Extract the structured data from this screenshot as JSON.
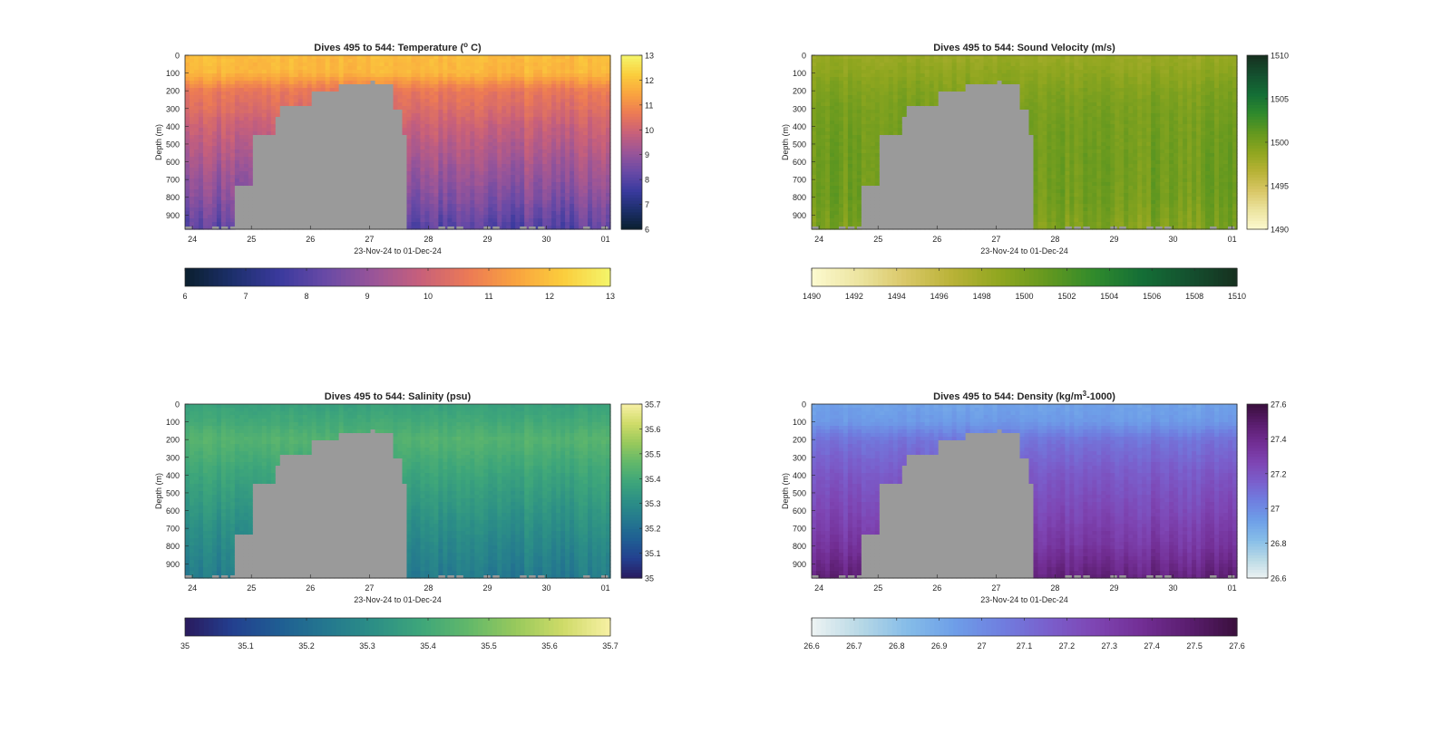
{
  "figure": {
    "background": "#ffffff",
    "mask_color": "#9a9a9a"
  },
  "chart_data": [
    {
      "type": "heatmap",
      "title_parts": [
        "Dives 495 to 544: Temperature (",
        "o",
        " C)"
      ],
      "xlabel": "23-Nov-24 to 01-Dec-24",
      "ylabel": "Depth (m)",
      "x_ticks": [
        "24",
        "25",
        "26",
        "27",
        "28",
        "29",
        "30",
        "01"
      ],
      "x_domain": [
        "2024-11-23T21:00",
        "2024-12-01T02:00"
      ],
      "y_ticks": [
        0,
        100,
        200,
        300,
        400,
        500,
        600,
        700,
        800,
        900
      ],
      "ylim": [
        0,
        980
      ],
      "y_reversed": true,
      "clim": [
        6,
        13
      ],
      "colorbar_right_ticks": [
        "6",
        "7",
        "8",
        "9",
        "10",
        "11",
        "12",
        "13"
      ],
      "colorbar_bottom_ticks": [
        "6",
        "7",
        "8",
        "9",
        "10",
        "11",
        "12",
        "13"
      ],
      "colormap": [
        "#0a1f2e",
        "#1c2f6b",
        "#3a3a9e",
        "#6a4aa6",
        "#9a5598",
        "#c8607a",
        "#ec7a55",
        "#f9a33f",
        "#fbcd3c",
        "#f4f56a"
      ],
      "profile": {
        "depths": [
          0,
          100,
          200,
          300,
          400,
          600,
          800,
          980
        ],
        "values": [
          11.9,
          11.8,
          10.6,
          10.3,
          9.9,
          9.3,
          8.7,
          8.0
        ]
      },
      "variability": 0.35,
      "gap": {
        "x": [
          "2024-11-24T16:00",
          "2024-11-24T17:00",
          "2024-11-25T00:00",
          "2024-11-25T09:00",
          "2024-11-25T12:00",
          "2024-11-26T00:00",
          "2024-11-26T12:00",
          "2024-11-27T00:00",
          "2024-11-27T03:00",
          "2024-11-27T09:00",
          "2024-11-27T14:00",
          "2024-11-27T16:00"
        ],
        "top_depth": [
          980,
          740,
          440,
          340,
          280,
          200,
          160,
          150,
          160,
          300,
          440,
          980
        ]
      }
    },
    {
      "type": "heatmap",
      "title_parts": [
        "Dives 495 to 544: Sound Velocity (m/s)",
        "",
        ""
      ],
      "xlabel": "23-Nov-24 to 01-Dec-24",
      "ylabel": "Depth (m)",
      "x_ticks": [
        "24",
        "25",
        "26",
        "27",
        "28",
        "29",
        "30",
        "01"
      ],
      "x_domain": [
        "2024-11-23T21:00",
        "2024-12-01T02:00"
      ],
      "y_ticks": [
        0,
        100,
        200,
        300,
        400,
        500,
        600,
        700,
        800,
        900
      ],
      "ylim": [
        0,
        980
      ],
      "y_reversed": true,
      "clim": [
        1490,
        1510
      ],
      "colorbar_right_ticks": [
        "1490",
        "1495",
        "1500",
        "1505",
        "1510"
      ],
      "colorbar_bottom_ticks": [
        "1490",
        "1492",
        "1494",
        "1496",
        "1498",
        "1500",
        "1502",
        "1504",
        "1506",
        "1508",
        "1510"
      ],
      "colormap": [
        "#fdfad0",
        "#ece4a0",
        "#d9c766",
        "#b8b236",
        "#8fa61f",
        "#63981f",
        "#2f8a2c",
        "#146e36",
        "#14502f",
        "#16301f"
      ],
      "profile": {
        "depths": [
          0,
          100,
          200,
          300,
          400,
          600,
          800,
          980
        ],
        "values": [
          1498.3,
          1498.9,
          1499.6,
          1500.0,
          1500.2,
          1500.4,
          1500.3,
          1499.6
        ]
      },
      "variability": 0.9,
      "gap": {
        "x": [
          "2024-11-24T16:00",
          "2024-11-24T17:00",
          "2024-11-25T00:00",
          "2024-11-25T09:00",
          "2024-11-25T12:00",
          "2024-11-26T00:00",
          "2024-11-26T12:00",
          "2024-11-27T00:00",
          "2024-11-27T03:00",
          "2024-11-27T09:00",
          "2024-11-27T14:00",
          "2024-11-27T16:00"
        ],
        "top_depth": [
          980,
          740,
          440,
          340,
          280,
          200,
          160,
          150,
          160,
          300,
          440,
          980
        ]
      }
    },
    {
      "type": "heatmap",
      "title_parts": [
        "Dives 495 to 544: Salinity (psu)",
        "",
        ""
      ],
      "xlabel": "23-Nov-24 to 01-Dec-24",
      "ylabel": "Depth (m)",
      "x_ticks": [
        "24",
        "25",
        "26",
        "27",
        "28",
        "29",
        "30",
        "01"
      ],
      "x_domain": [
        "2024-11-23T21:00",
        "2024-12-01T02:00"
      ],
      "y_ticks": [
        0,
        100,
        200,
        300,
        400,
        500,
        600,
        700,
        800,
        900
      ],
      "ylim": [
        0,
        980
      ],
      "y_reversed": true,
      "clim": [
        35,
        35.7
      ],
      "colorbar_right_ticks": [
        "35",
        "35.1",
        "35.2",
        "35.3",
        "35.4",
        "35.5",
        "35.6",
        "35.7"
      ],
      "colorbar_bottom_ticks": [
        "35",
        "35.1",
        "35.2",
        "35.3",
        "35.4",
        "35.5",
        "35.6",
        "35.7"
      ],
      "colormap": [
        "#2a1a5e",
        "#233f8f",
        "#1f5e93",
        "#24788f",
        "#2c8f86",
        "#3ea67a",
        "#62b86a",
        "#98c95c",
        "#cfdb68",
        "#f7f0a4"
      ],
      "profile": {
        "depths": [
          0,
          100,
          200,
          300,
          400,
          600,
          800,
          980
        ],
        "values": [
          35.37,
          35.4,
          35.44,
          35.41,
          35.38,
          35.33,
          35.28,
          35.24
        ]
      },
      "variability": 0.025,
      "gap": {
        "x": [
          "2024-11-24T16:00",
          "2024-11-24T17:00",
          "2024-11-25T00:00",
          "2024-11-25T09:00",
          "2024-11-25T12:00",
          "2024-11-26T00:00",
          "2024-11-26T12:00",
          "2024-11-27T00:00",
          "2024-11-27T03:00",
          "2024-11-27T09:00",
          "2024-11-27T14:00",
          "2024-11-27T16:00"
        ],
        "top_depth": [
          980,
          740,
          440,
          340,
          280,
          200,
          160,
          150,
          160,
          300,
          440,
          980
        ]
      }
    },
    {
      "type": "heatmap",
      "title_parts": [
        "Dives 495 to 544: Density (kg/m",
        "3",
        "-1000)"
      ],
      "xlabel": "23-Nov-24 to 01-Dec-24",
      "ylabel": "Depth (m)",
      "x_ticks": [
        "24",
        "25",
        "26",
        "27",
        "28",
        "29",
        "30",
        "01"
      ],
      "x_domain": [
        "2024-11-23T21:00",
        "2024-12-01T02:00"
      ],
      "y_ticks": [
        0,
        100,
        200,
        300,
        400,
        500,
        600,
        700,
        800,
        900
      ],
      "ylim": [
        0,
        980
      ],
      "y_reversed": true,
      "clim": [
        26.6,
        27.6
      ],
      "colorbar_right_ticks": [
        "26.6",
        "26.8",
        "27",
        "27.2",
        "27.4",
        "27.6"
      ],
      "colorbar_bottom_ticks": [
        "26.6",
        "26.7",
        "26.8",
        "26.9",
        "27",
        "27.1",
        "27.2",
        "27.3",
        "27.4",
        "27.5",
        "27.6"
      ],
      "colormap": [
        "#eef3f3",
        "#b9d9e6",
        "#86bde8",
        "#6e9fe8",
        "#6f7fe0",
        "#7a5fcc",
        "#7e45b3",
        "#722e94",
        "#5a1d6e",
        "#3a0f3d"
      ],
      "profile": {
        "depths": [
          0,
          100,
          200,
          300,
          400,
          600,
          800,
          980
        ],
        "values": [
          26.92,
          26.95,
          27.08,
          27.13,
          27.18,
          27.25,
          27.33,
          27.45
        ]
      },
      "variability": 0.04,
      "gap": {
        "x": [
          "2024-11-24T16:00",
          "2024-11-24T17:00",
          "2024-11-25T00:00",
          "2024-11-25T09:00",
          "2024-11-25T12:00",
          "2024-11-26T00:00",
          "2024-11-26T12:00",
          "2024-11-27T00:00",
          "2024-11-27T03:00",
          "2024-11-27T09:00",
          "2024-11-27T14:00",
          "2024-11-27T16:00"
        ],
        "top_depth": [
          980,
          740,
          440,
          340,
          280,
          200,
          160,
          150,
          160,
          300,
          440,
          980
        ]
      }
    }
  ]
}
